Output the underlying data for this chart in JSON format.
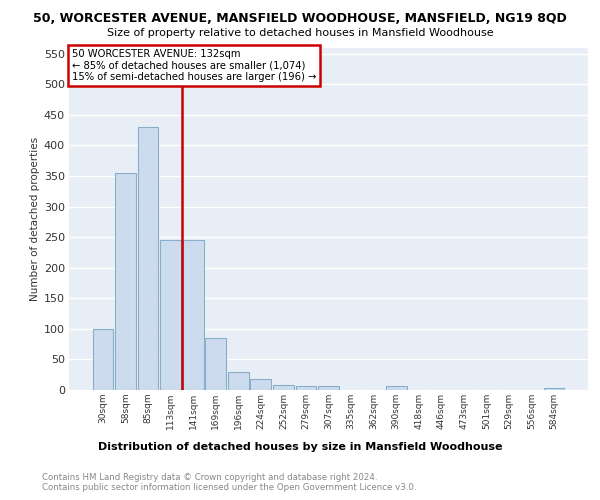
{
  "title1": "50, WORCESTER AVENUE, MANSFIELD WOODHOUSE, MANSFIELD, NG19 8QD",
  "title2": "Size of property relative to detached houses in Mansfield Woodhouse",
  "xlabel": "Distribution of detached houses by size in Mansfield Woodhouse",
  "ylabel": "Number of detached properties",
  "footer": "Contains HM Land Registry data © Crown copyright and database right 2024.\nContains public sector information licensed under the Open Government Licence v3.0.",
  "bins": [
    "30sqm",
    "58sqm",
    "85sqm",
    "113sqm",
    "141sqm",
    "169sqm",
    "196sqm",
    "224sqm",
    "252sqm",
    "279sqm",
    "307sqm",
    "335sqm",
    "362sqm",
    "390sqm",
    "418sqm",
    "446sqm",
    "473sqm",
    "501sqm",
    "529sqm",
    "556sqm",
    "584sqm"
  ],
  "values": [
    100,
    355,
    430,
    245,
    245,
    85,
    30,
    18,
    8,
    6,
    6,
    0,
    0,
    6,
    0,
    0,
    0,
    0,
    0,
    0,
    4
  ],
  "bar_color": "#ccdcee",
  "bar_edge_color": "#89aecb",
  "vline_color": "#cc0000",
  "annotation_line1": "50 WORCESTER AVENUE: 132sqm",
  "annotation_line2": "← 85% of detached houses are smaller (1,074)",
  "annotation_line3": "15% of semi-detached houses are larger (196) →",
  "annotation_box_color": "#cc0000",
  "ylim": [
    0,
    560
  ],
  "yticks": [
    0,
    50,
    100,
    150,
    200,
    250,
    300,
    350,
    400,
    450,
    500,
    550
  ],
  "background_color": "#e8eef5",
  "grid_color": "#ffffff",
  "title1_fontsize": 9,
  "title2_fontsize": 8
}
